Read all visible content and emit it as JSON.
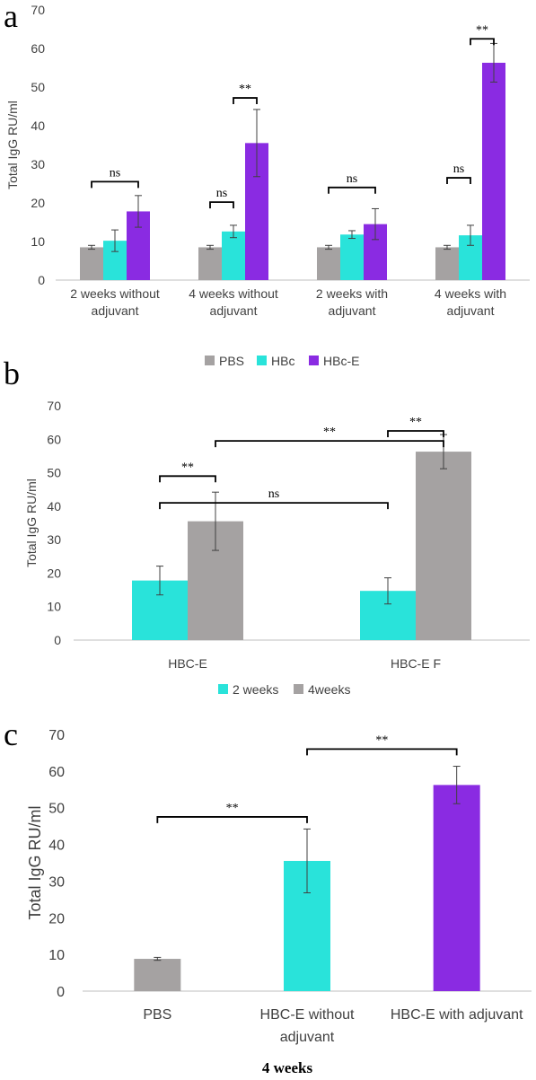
{
  "colors": {
    "pbs": "#A5A2A2",
    "hbc": "#29E3DA",
    "hbce": "#8A2BE2",
    "axis": "#BFBFBF",
    "err": "#404040"
  },
  "chart_data": [
    {
      "panel": "a",
      "type": "bar",
      "ylabel": "Total IgG RU/ml",
      "ylim": [
        0,
        70
      ],
      "yticks": [
        0,
        10,
        20,
        30,
        40,
        50,
        60,
        70
      ],
      "categories": [
        [
          "2 weeks without",
          "adjuvant"
        ],
        [
          "4 weeks without",
          "adjuvant"
        ],
        [
          "2 weeks with",
          "adjuvant"
        ],
        [
          "4 weeks with",
          "adjuvant"
        ]
      ],
      "series": [
        {
          "name": "PBS",
          "color": "#A5A2A2",
          "values": [
            8.5,
            8.5,
            8.5,
            8.5
          ],
          "errors": [
            0.5,
            0.5,
            0.5,
            0.5
          ]
        },
        {
          "name": "HBc",
          "color": "#29E3DA",
          "values": [
            10.2,
            12.6,
            11.8,
            11.6
          ],
          "errors": [
            2.8,
            1.6,
            1.0,
            2.6
          ]
        },
        {
          "name": "HBc-E",
          "color": "#8A2BE2",
          "values": [
            17.8,
            35.5,
            14.5,
            56.3
          ],
          "errors": [
            4.1,
            8.7,
            4.0,
            5.0
          ]
        }
      ],
      "annotations": [
        {
          "label": "ns",
          "category": 0,
          "from": 0,
          "to": 2,
          "y": 25.5
        },
        {
          "label": "ns",
          "category": 1,
          "from": 0,
          "to": 1,
          "y": 20.2
        },
        {
          "label": "**",
          "category": 1,
          "from": 1,
          "to": 2,
          "y": 47.2
        },
        {
          "label": "ns",
          "category": 2,
          "from": 0,
          "to": 2,
          "y": 24.0
        },
        {
          "label": "ns",
          "category": 3,
          "from": 0,
          "to": 1,
          "y": 26.5
        },
        {
          "label": "**",
          "category": 3,
          "from": 1,
          "to": 2,
          "y": 62.5
        }
      ],
      "legend": {
        "placement": "bottom",
        "entries": [
          "PBS",
          "HBc",
          "HBc-E"
        ]
      }
    },
    {
      "panel": "b",
      "type": "bar",
      "ylabel": "Total IgG RU/ml",
      "ylim": [
        0,
        70
      ],
      "yticks": [
        0,
        10,
        20,
        30,
        40,
        50,
        60,
        70
      ],
      "categories": [
        [
          "HBC-E"
        ],
        [
          "HBC-E F"
        ]
      ],
      "series": [
        {
          "name": "2 weeks",
          "color": "#29E3DA",
          "values": [
            17.8,
            14.7
          ],
          "errors": [
            4.3,
            3.9
          ]
        },
        {
          "name": "4weeks",
          "color": "#A5A2A2",
          "values": [
            35.5,
            56.3
          ],
          "errors": [
            8.7,
            5.1
          ]
        }
      ],
      "annotations": [
        {
          "label": "**",
          "from": [
            0,
            0
          ],
          "to": [
            0,
            1
          ],
          "y": 49.0
        },
        {
          "label": "ns",
          "from": [
            0,
            0
          ],
          "to": [
            1,
            0
          ],
          "y": 41.0
        },
        {
          "label": "**",
          "from": [
            0,
            1
          ],
          "to": [
            1,
            1
          ],
          "y": 59.5
        },
        {
          "label": "**",
          "from": [
            1,
            0
          ],
          "to": [
            1,
            1
          ],
          "y": 62.5
        }
      ],
      "legend": {
        "placement": "bottom",
        "entries": [
          "2 weeks",
          "4weeks"
        ]
      }
    },
    {
      "panel": "c",
      "type": "bar",
      "ylabel": "Total IgG RU/ml",
      "ylim": [
        0,
        70
      ],
      "yticks": [
        0,
        10,
        20,
        30,
        40,
        50,
        60,
        70
      ],
      "categories": [
        [
          "PBS"
        ],
        [
          "HBC-E without",
          "adjuvant"
        ],
        [
          "HBC-E with adjuvant"
        ]
      ],
      "values": [
        8.8,
        35.5,
        56.2
      ],
      "errors": [
        0.4,
        8.7,
        5.1
      ],
      "colors": [
        "#A5A2A2",
        "#29E3DA",
        "#8A2BE2"
      ],
      "annotations": [
        {
          "label": "**",
          "from": 0,
          "to": 1,
          "y": 47.5
        },
        {
          "label": "**",
          "from": 1,
          "to": 2,
          "y": 66.0
        }
      ],
      "caption": "4 weeks"
    }
  ]
}
